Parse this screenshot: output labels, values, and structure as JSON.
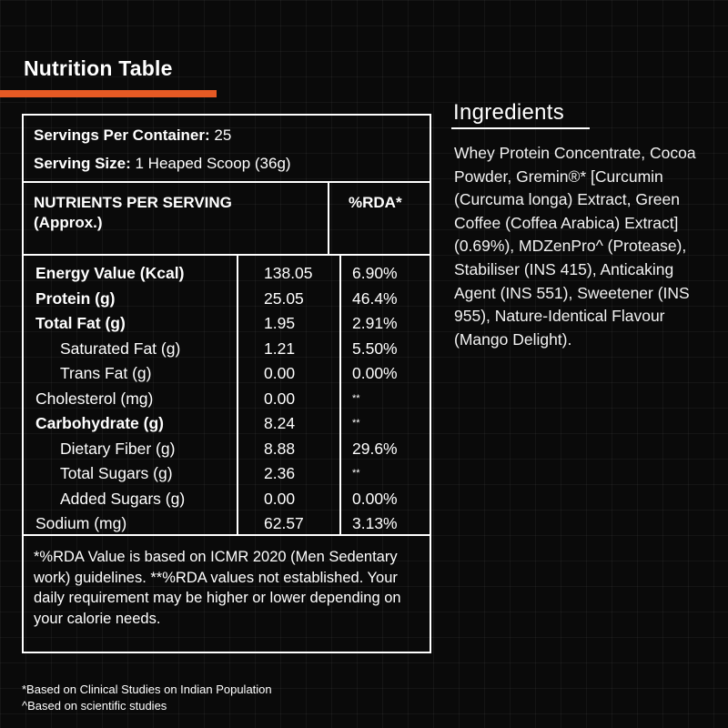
{
  "nutrition": {
    "title": "Nutrition Table",
    "servings_label": "Servings Per Container:",
    "servings_value": "25",
    "serving_size_label": "Serving Size:",
    "serving_size_value": "1 Heaped Scoop (36g)",
    "header_nutrients_line1": "NUTRIENTS PER SERVING",
    "header_nutrients_line2": "(Approx.)",
    "header_rda": "%RDA*",
    "rows": [
      {
        "name": "Energy Value (Kcal)",
        "value": "138.05",
        "rda": "6.90%",
        "bold": true,
        "indent": false
      },
      {
        "name": "Protein (g)",
        "value": "25.05",
        "rda": "46.4%",
        "bold": true,
        "indent": false
      },
      {
        "name": "Total Fat (g)",
        "value": "1.95",
        "rda": "2.91%",
        "bold": true,
        "indent": false
      },
      {
        "name": "Saturated Fat (g)",
        "value": "1.21",
        "rda": "5.50%",
        "bold": false,
        "indent": true
      },
      {
        "name": "Trans Fat (g)",
        "value": "0.00",
        "rda": "0.00%",
        "bold": false,
        "indent": true
      },
      {
        "name": "Cholesterol (mg)",
        "value": "0.00",
        "rda": "**",
        "bold": false,
        "indent": false
      },
      {
        "name": "Carbohydrate (g)",
        "value": "8.24",
        "rda": "**",
        "bold": true,
        "indent": false
      },
      {
        "name": "Dietary Fiber (g)",
        "value": "8.88",
        "rda": "29.6%",
        "bold": false,
        "indent": true
      },
      {
        "name": "Total Sugars (g)",
        "value": "2.36",
        "rda": "**",
        "bold": false,
        "indent": true
      },
      {
        "name": "Added Sugars (g)",
        "value": "0.00",
        "rda": "0.00%",
        "bold": false,
        "indent": true
      },
      {
        "name": "Sodium (mg)",
        "value": "62.57",
        "rda": "3.13%",
        "bold": false,
        "indent": false
      }
    ],
    "footnote": "*%RDA Value is based on ICMR 2020 (Men Sedentary work) guidelines. **%RDA values not established. Your daily requirement may be higher or lower depending on your calorie needs."
  },
  "ingredients": {
    "title": "Ingredients",
    "text": "Whey Protein Concentrate, Cocoa Powder, Gremin®* [Curcumin (Curcuma longa) Extract, Green Coffee (Coffea Arabica) Extract] (0.69%), MDZenPro^ (Protease), Stabiliser (INS 415), Anticaking Agent (INS 551), Sweetener (INS 955), Nature-Identical Flavour (Mango Delight)."
  },
  "notes": {
    "line1": "*Based on Clinical Studies on Indian Population",
    "line2": "^Based on scientific studies"
  },
  "colors": {
    "background": "#0a0a0a",
    "accent": "#e65a24",
    "text": "#ffffff"
  }
}
